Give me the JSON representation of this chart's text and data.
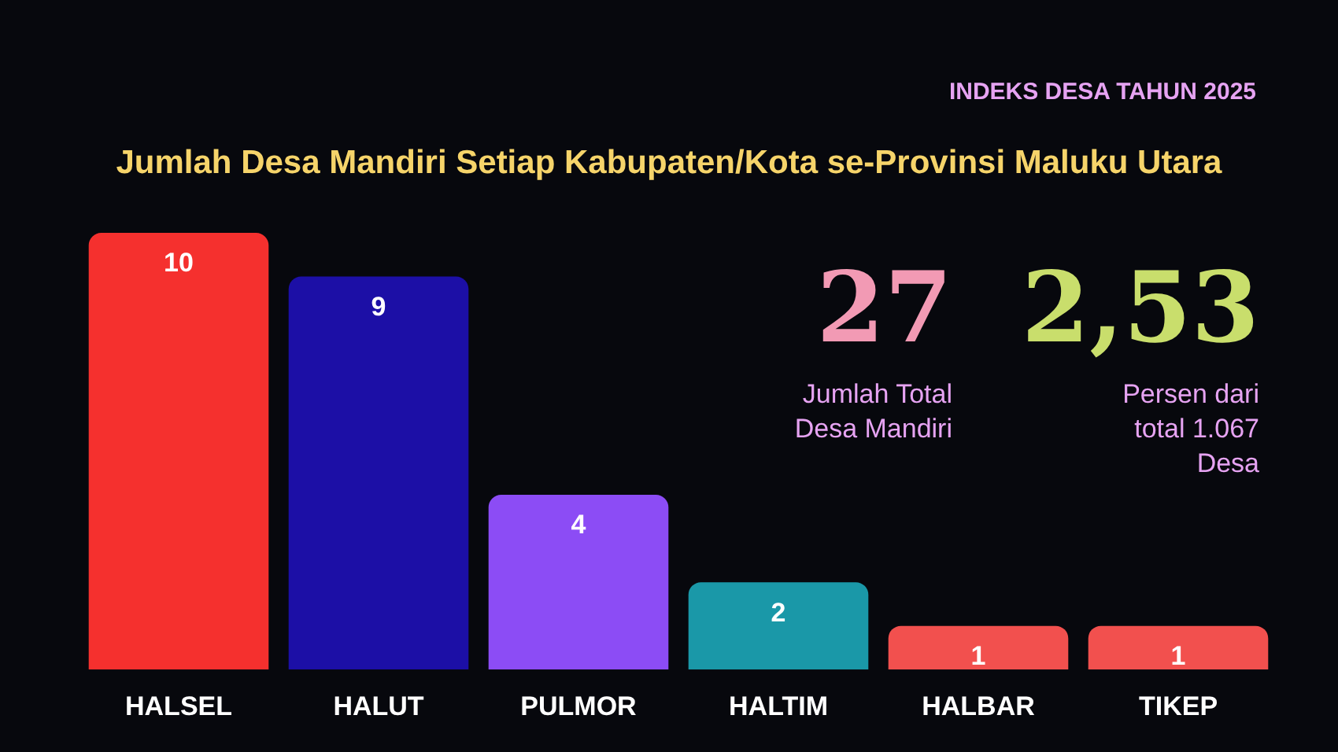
{
  "chart_data": {
    "type": "bar",
    "title": "Jumlah Desa Mandiri Setiap Kabupaten/Kota se-Provinsi Maluku Utara",
    "subtitle": "INDEKS DESA TAHUN 2025",
    "categories": [
      "HALSEL",
      "HALUT",
      "PULMOR",
      "HALTIM",
      "HALBAR",
      "TIKEP"
    ],
    "values": [
      10,
      9,
      4,
      2,
      1,
      1
    ],
    "colors": [
      "#f5302e",
      "#1c0fa6",
      "#8c4cf5",
      "#1a98a8",
      "#f2504e",
      "#f2504e"
    ],
    "data_labels": true,
    "legend": false,
    "annotations": [
      "27",
      "Jumlah Total Desa Mandiri",
      "2,53",
      "Persen dari total 1.067 Desa"
    ]
  }
}
